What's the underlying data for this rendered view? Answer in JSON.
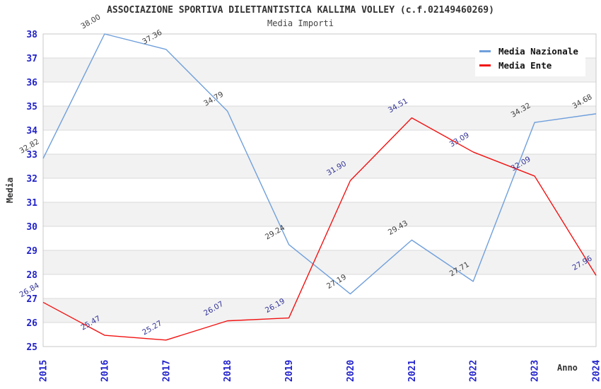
{
  "header": {
    "title": "ASSOCIAZIONE SPORTIVA DILETTANTISTICA KALLIMA VOLLEY (c.f.02149460269)",
    "subtitle": "Media Importi"
  },
  "legend": {
    "items": [
      {
        "label": "Media Nazionale",
        "color": "#6f9fdc"
      },
      {
        "label": "Media Ente",
        "color": "#f21111"
      }
    ]
  },
  "axes": {
    "y_title": "Media",
    "x_title": "Anno",
    "y_ticks": [
      25,
      26,
      27,
      28,
      29,
      30,
      31,
      32,
      33,
      34,
      35,
      36,
      37,
      38
    ],
    "x_ticks": [
      "2015",
      "2016",
      "2017",
      "2018",
      "2019",
      "2020",
      "2021",
      "2022",
      "2023",
      "2024"
    ]
  },
  "style": {
    "tick_color": "#2222cc",
    "band_color": "#f2f2f2",
    "gridline_color": "#d9d9d9",
    "border_color": "#c9c9c9"
  },
  "chart_data": {
    "type": "line",
    "title": "ASSOCIAZIONE SPORTIVA DILETTANTISTICA KALLIMA VOLLEY (c.f.02149460269)",
    "subtitle": "Media Importi",
    "xlabel": "Anno",
    "ylabel": "Media",
    "ylim": [
      25,
      38
    ],
    "grid": true,
    "banded_background": true,
    "legend_position": "top-right",
    "x": [
      2015,
      2016,
      2017,
      2018,
      2019,
      2020,
      2021,
      2022,
      2023,
      2024
    ],
    "series": [
      {
        "name": "Media Nazionale",
        "color": "#6f9fdc",
        "label_color": "#404040",
        "values": [
          32.82,
          38.0,
          37.36,
          34.79,
          29.24,
          27.19,
          29.43,
          27.71,
          34.32,
          34.68
        ]
      },
      {
        "name": "Media Ente",
        "color": "#f21111",
        "label_color": "#333399",
        "values": [
          26.84,
          25.47,
          25.27,
          26.07,
          26.19,
          31.9,
          34.51,
          33.09,
          32.09,
          27.96
        ]
      }
    ]
  }
}
